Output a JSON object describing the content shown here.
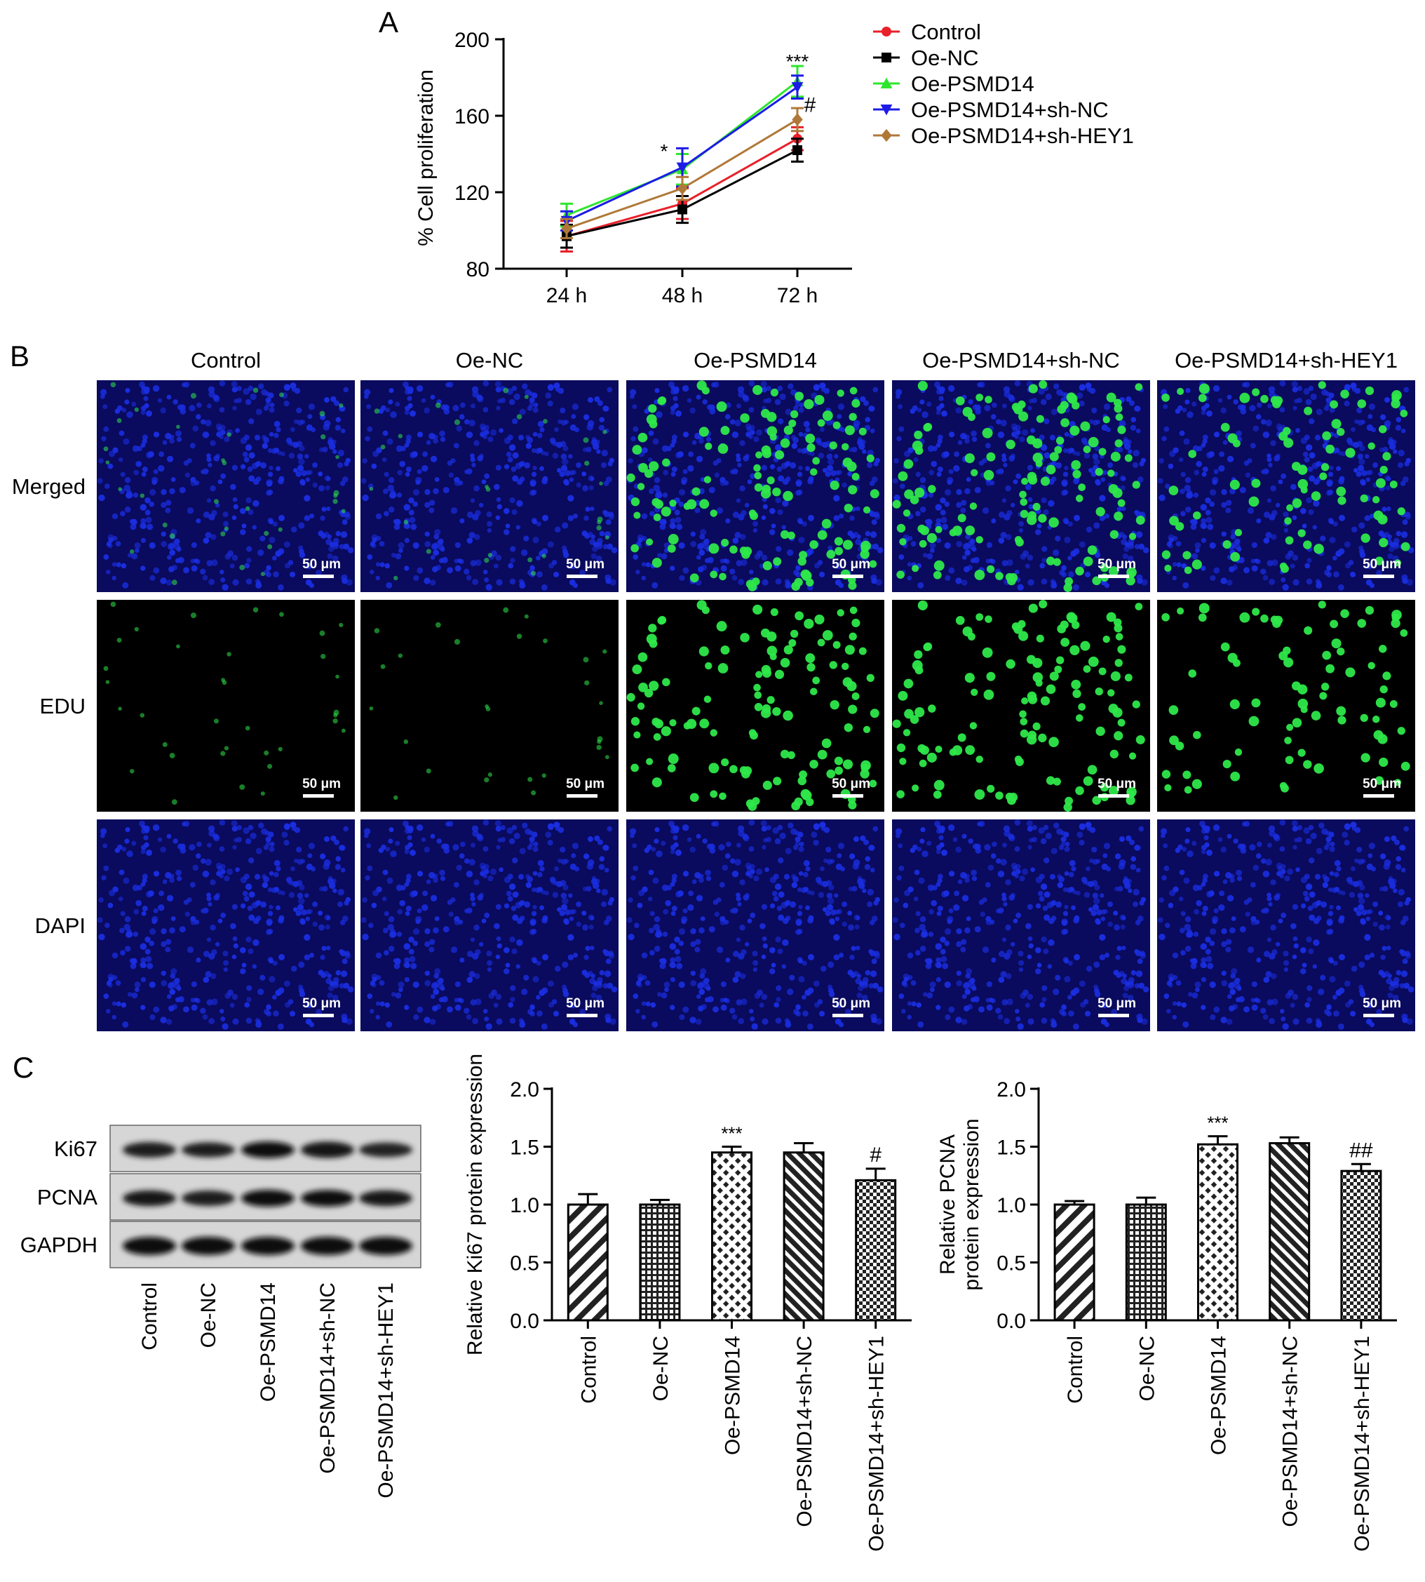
{
  "panel_letters": {
    "a": "A",
    "b": "B",
    "c": "C"
  },
  "colors": {
    "control": "#e8202a",
    "oe_nc": "#000000",
    "oe_psmd14": "#2ee62e",
    "oe_psmd14_sh_nc": "#1c1ce6",
    "oe_psmd14_sh_hey1": "#b07838",
    "dapi_blue": "#1a2ee0",
    "edu_green": "#2ee84a"
  },
  "chart_data": [
    {
      "type": "line",
      "title": "",
      "xlabel": "",
      "ylabel": "% Cell proliferation",
      "categories": [
        "24 h",
        "48 h",
        "72 h"
      ],
      "ylim": [
        80,
        200
      ],
      "yticks": [
        "80",
        "120",
        "160",
        "200"
      ],
      "legend_position": "top-right",
      "series": [
        {
          "name": "Control",
          "marker": "circle",
          "values": [
            97,
            114,
            148
          ],
          "errors": [
            8,
            8,
            6
          ]
        },
        {
          "name": "Oe-NC",
          "marker": "square",
          "values": [
            97,
            111,
            142
          ],
          "errors": [
            6,
            7,
            6
          ]
        },
        {
          "name": "Oe-PSMD14",
          "marker": "triangle-up",
          "values": [
            108,
            132,
            178
          ],
          "errors": [
            6,
            8,
            8
          ]
        },
        {
          "name": "Oe-PSMD14+sh-NC",
          "marker": "triangle-down",
          "values": [
            105,
            133,
            175
          ],
          "errors": [
            5,
            10,
            6
          ]
        },
        {
          "name": "Oe-PSMD14+sh-HEY1",
          "marker": "diamond",
          "values": [
            101,
            122,
            158
          ],
          "errors": [
            5,
            6,
            6
          ]
        }
      ],
      "annotations": [
        {
          "text": "*",
          "category": "48 h",
          "y": 138
        },
        {
          "text": "***",
          "category": "72 h",
          "y": 185
        },
        {
          "text": "#",
          "category": "72 h",
          "y": 162
        }
      ]
    },
    {
      "type": "bar",
      "title": "",
      "ylabel": "Relative Ki67 protein expression",
      "categories": [
        "Control",
        "Oe-NC",
        "Oe-PSMD14",
        "Oe-PSMD14+sh-NC",
        "Oe-PSMD14+sh-HEY1"
      ],
      "values": [
        1.0,
        1.0,
        1.45,
        1.45,
        1.21
      ],
      "errors": [
        0.09,
        0.04,
        0.05,
        0.08,
        0.1
      ],
      "ylim": [
        0,
        2.0
      ],
      "yticks": [
        "0.0",
        "0.5",
        "1.0",
        "1.5",
        "2.0"
      ],
      "patterns": [
        "diag",
        "grid",
        "dots",
        "diag-dense",
        "check"
      ],
      "annotations": [
        "",
        "",
        "***",
        "",
        "#"
      ]
    },
    {
      "type": "bar",
      "title": "",
      "ylabel_lines": [
        "Relative PCNA",
        "protein expression"
      ],
      "categories": [
        "Control",
        "Oe-NC",
        "Oe-PSMD14",
        "Oe-PSMD14+sh-NC",
        "Oe-PSMD14+sh-HEY1"
      ],
      "values": [
        1.0,
        1.0,
        1.52,
        1.53,
        1.29
      ],
      "errors": [
        0.03,
        0.06,
        0.07,
        0.05,
        0.06
      ],
      "ylim": [
        0,
        2.0
      ],
      "yticks": [
        "0.0",
        "0.5",
        "1.0",
        "1.5",
        "2.0"
      ],
      "patterns": [
        "diag",
        "grid",
        "dots",
        "diag-dense",
        "check"
      ],
      "annotations": [
        "",
        "",
        "***",
        "",
        "##"
      ]
    }
  ],
  "micrographs": {
    "columns": [
      "Control",
      "Oe-NC",
      "Oe-PSMD14",
      "Oe-PSMD14+sh-NC",
      "Oe-PSMD14+sh-HEY1"
    ],
    "rows": [
      "Merged",
      "EDU",
      "DAPI"
    ],
    "scale_bar": "50 μm",
    "edu_density": [
      0.15,
      0.12,
      0.55,
      0.55,
      0.35
    ]
  },
  "western_blot": {
    "bands": [
      "Ki67",
      "PCNA",
      "GAPDH"
    ],
    "lanes": [
      "Control",
      "Oe-NC",
      "Oe-PSMD14",
      "Oe-PSMD14+sh-NC",
      "Oe-PSMD14+sh-HEY1"
    ],
    "intensity": [
      [
        0.75,
        0.65,
        0.95,
        0.9,
        0.6
      ],
      [
        0.8,
        0.75,
        1.0,
        0.95,
        0.8
      ],
      [
        1.0,
        1.0,
        1.0,
        1.0,
        1.0
      ]
    ]
  }
}
